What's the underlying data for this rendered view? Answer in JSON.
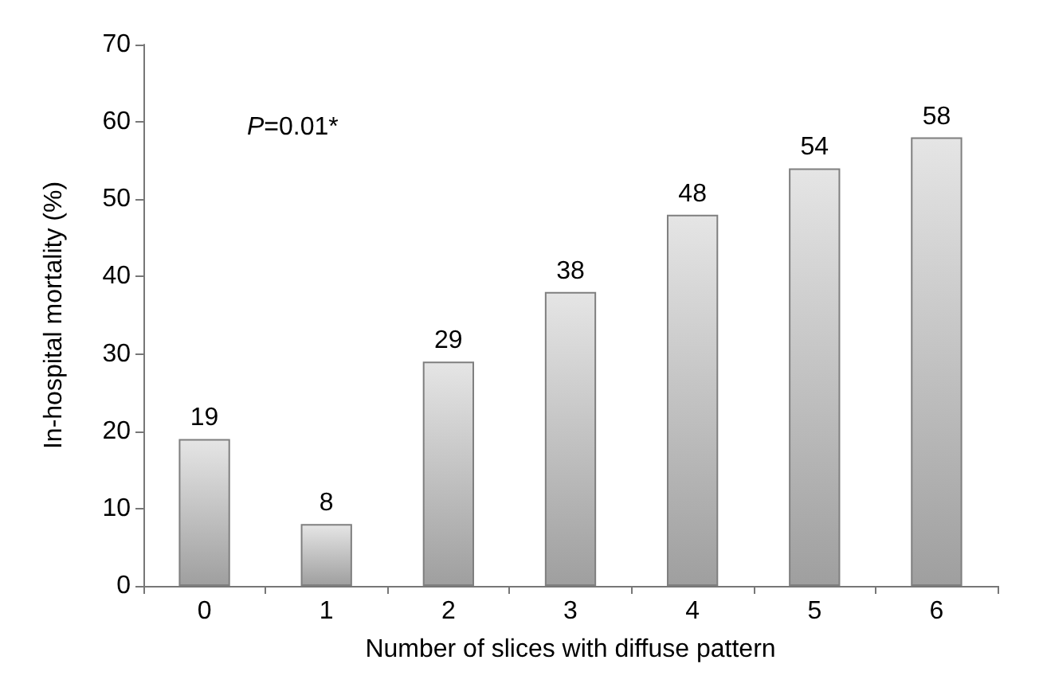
{
  "chart_data": {
    "type": "bar",
    "xlabel": "Number of slices with diffuse pattern",
    "ylabel": "In-hospital mortality (%)",
    "categories": [
      "0",
      "1",
      "2",
      "3",
      "4",
      "5",
      "6"
    ],
    "values": [
      19,
      8,
      29,
      38,
      48,
      54,
      58
    ],
    "color": "#7f7f7f",
    "ylim": [
      0,
      70
    ],
    "yticks": [
      0,
      10,
      20,
      30,
      40,
      50,
      60,
      70
    ],
    "grid": false,
    "data_labels": true,
    "annotations": [
      "P=0.01*"
    ]
  }
}
